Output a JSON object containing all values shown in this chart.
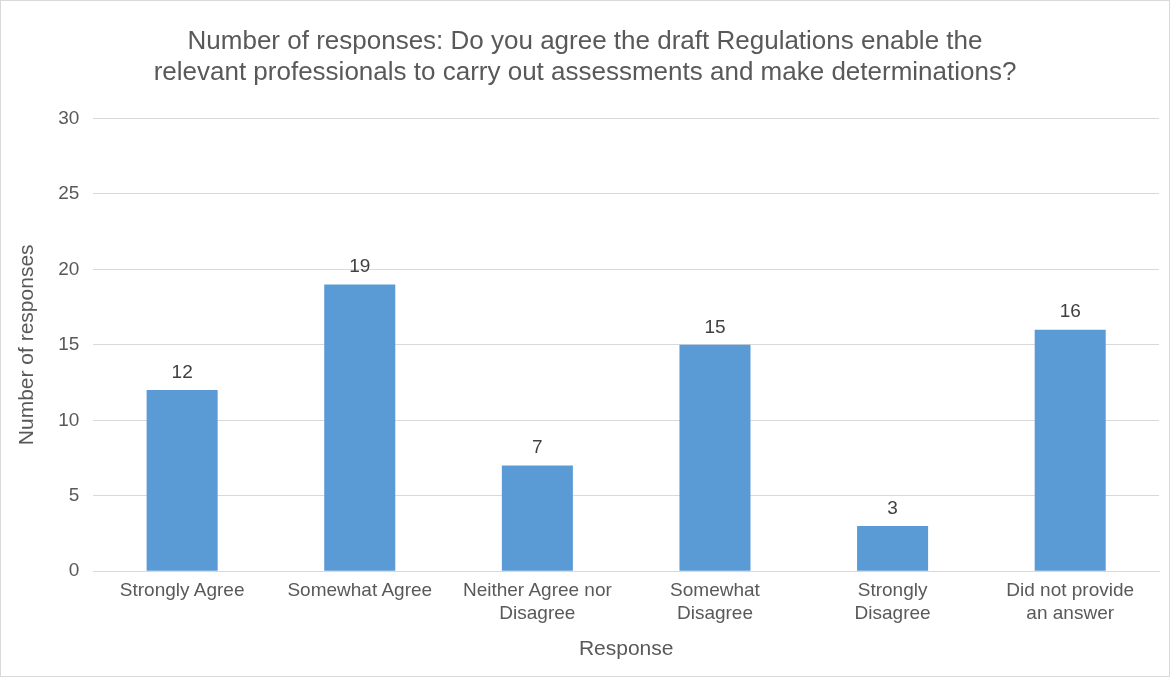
{
  "chart_data": {
    "type": "bar",
    "title": "Number of responses: Do you agree the draft Regulations enable the relevant professionals to carry out assessments and make determinations?",
    "xlabel": "Response",
    "ylabel": "Number of responses",
    "categories": [
      "Strongly Agree",
      "Somewhat Agree",
      "Neither Agree nor Disagree",
      "Somewhat Disagree",
      "Strongly Disagree",
      "Did not provide an answer"
    ],
    "values": [
      12,
      19,
      7,
      15,
      3,
      16
    ],
    "color": "#5b9bd5",
    "ylim": [
      0,
      30
    ],
    "yticks": [
      0,
      5,
      10,
      15,
      20,
      25,
      30
    ],
    "grid": "y",
    "data_labels": true,
    "legend": false
  }
}
